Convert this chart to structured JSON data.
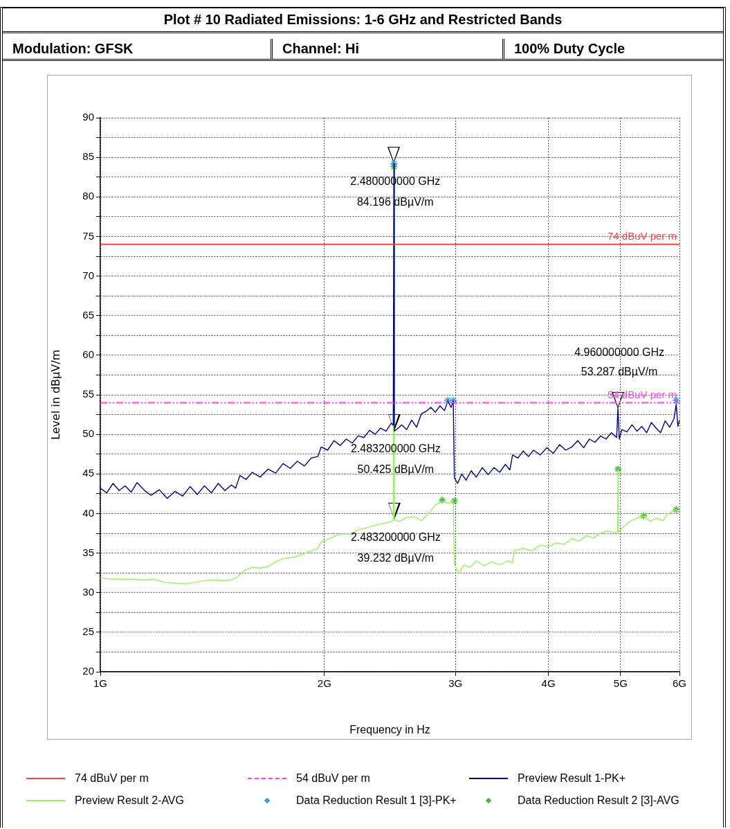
{
  "chart_data": {
    "type": "line",
    "title": "Plot # 10 Radiated Emissions: 1-6 GHz and Restricted Bands",
    "annotations": [
      "Modulation: GFSK",
      "Channel: Hi",
      "100% Duty Cycle",
      {
        "text": "2.480000000 GHz\n84.196 dBµV/m",
        "x": 2.48,
        "y": 84.196
      },
      {
        "text": "2.483200000 GHz\n50.425 dBµV/m",
        "x": 2.4832,
        "y": 50.425
      },
      {
        "text": "2.483200000 GHz\n39.232 dBµV/m",
        "x": 2.4832,
        "y": 39.232
      },
      {
        "text": "4.960000000 GHz\n53.287 dBµV/m",
        "x": 4.96,
        "y": 53.287
      }
    ],
    "xlabel": "Frequency in Hz",
    "ylabel": "Level in dBµV/m",
    "log": "x",
    "grid": true,
    "legend": "bottom",
    "xlim": [
      1,
      6
    ],
    "xticks": [
      {
        "value": 1,
        "label": "1G"
      },
      {
        "value": 2,
        "label": "2G"
      },
      {
        "value": 3,
        "label": "3G"
      },
      {
        "value": 4,
        "label": "4G"
      },
      {
        "value": 5,
        "label": "5G"
      },
      {
        "value": 6,
        "label": "6G"
      }
    ],
    "ylim": [
      20,
      90
    ],
    "yticks": [
      20,
      {
        "value": 22.5,
        "label": null
      },
      25,
      {
        "value": 27.5,
        "label": null
      },
      30,
      {
        "value": 32.5,
        "label": null
      },
      35,
      {
        "value": 37.5,
        "label": null
      },
      40,
      {
        "value": 42.5,
        "label": null
      },
      45,
      {
        "value": 47.5,
        "label": null
      },
      50,
      {
        "value": 52.5,
        "label": null
      },
      55,
      {
        "value": 57.5,
        "label": null
      },
      60,
      {
        "value": 62.5,
        "label": null
      },
      65,
      {
        "value": 67.5,
        "label": null
      },
      70,
      {
        "value": 72.5,
        "label": null
      },
      75,
      {
        "value": 77.5,
        "label": null
      },
      80,
      {
        "value": 82.5,
        "label": null
      },
      85,
      {
        "value": 87.5,
        "label": null
      },
      90
    ],
    "ref_lines": [
      {
        "axis": "y",
        "value": 74,
        "label": "74 dBuV per m",
        "color": "#ff4040",
        "line_style": "solid"
      },
      {
        "axis": "y",
        "value": 54,
        "label": "54 dBuV per m",
        "color": "#ff40ff",
        "line_style": "dashed"
      }
    ],
    "series": [
      {
        "name": "Preview Result 1-PK+",
        "type": "line",
        "color": "#000080",
        "marker": "none",
        "line_style": "solid",
        "x": [
          1.0,
          1.02,
          1.04,
          1.06,
          1.08,
          1.1,
          1.12,
          1.15,
          1.17,
          1.2,
          1.23,
          1.26,
          1.29,
          1.32,
          1.35,
          1.38,
          1.41,
          1.44,
          1.47,
          1.5,
          1.52,
          1.54,
          1.57,
          1.6,
          1.64,
          1.68,
          1.72,
          1.76,
          1.8,
          1.84,
          1.88,
          1.92,
          1.96,
          1.98,
          2.02,
          2.06,
          2.1,
          2.14,
          2.18,
          2.22,
          2.26,
          2.3,
          2.34,
          2.38,
          2.42,
          2.46,
          2.475,
          2.48,
          2.4832,
          2.5,
          2.54,
          2.58,
          2.62,
          2.66,
          2.7,
          2.74,
          2.78,
          2.82,
          2.86,
          2.9,
          2.93,
          2.96,
          2.98,
          2.99,
          3.02,
          3.06,
          3.1,
          3.15,
          3.2,
          3.26,
          3.32,
          3.38,
          3.44,
          3.5,
          3.55,
          3.58,
          3.64,
          3.7,
          3.76,
          3.82,
          3.9,
          3.98,
          4.06,
          4.14,
          4.22,
          4.3,
          4.38,
          4.46,
          4.54,
          4.62,
          4.7,
          4.78,
          4.86,
          4.94,
          4.96,
          4.98,
          5.02,
          5.1,
          5.18,
          5.26,
          5.34,
          5.42,
          5.5,
          5.58,
          5.66,
          5.74,
          5.82,
          5.9,
          5.94,
          5.97,
          6.0
        ],
        "values": [
          43.2,
          42.6,
          43.8,
          42.9,
          43.5,
          42.7,
          43.9,
          42.8,
          42.3,
          43.0,
          41.9,
          42.8,
          42.2,
          43.4,
          42.4,
          43.5,
          42.6,
          43.8,
          42.9,
          43.6,
          43.2,
          44.8,
          44.3,
          45.2,
          44.6,
          45.6,
          45.1,
          46.3,
          45.7,
          46.6,
          46.0,
          47.0,
          47.2,
          48.4,
          48.0,
          49.2,
          48.6,
          49.4,
          48.9,
          49.8,
          49.6,
          50.5,
          50.0,
          50.8,
          50.4,
          51.4,
          51.2,
          84.196,
          50.425,
          50.6,
          51.2,
          50.6,
          51.8,
          50.9,
          52.6,
          52.9,
          53.4,
          52.8,
          53.6,
          53.0,
          54.2,
          53.4,
          54.2,
          44.5,
          43.8,
          45.0,
          44.2,
          45.4,
          44.6,
          45.8,
          44.9,
          45.8,
          45.2,
          46.2,
          45.5,
          47.4,
          47.0,
          47.9,
          47.2,
          48.0,
          47.4,
          48.3,
          47.6,
          48.7,
          48.0,
          48.4,
          49.2,
          48.3,
          49.4,
          49.0,
          49.8,
          49.4,
          50.2,
          49.6,
          53.287,
          49.4,
          50.6,
          50.3,
          51.2,
          50.4,
          51.0,
          50.2,
          51.5,
          50.8,
          50.2,
          51.7,
          50.9,
          52.0,
          53.8,
          51.0,
          51.8
        ]
      },
      {
        "name": "Preview Result 2-AVG",
        "type": "line",
        "color": "#99ee66",
        "marker": "none",
        "line_style": "solid",
        "x": [
          1.0,
          1.05,
          1.1,
          1.15,
          1.18,
          1.22,
          1.26,
          1.3,
          1.34,
          1.38,
          1.42,
          1.46,
          1.5,
          1.53,
          1.56,
          1.6,
          1.64,
          1.68,
          1.72,
          1.76,
          1.8,
          1.85,
          1.9,
          1.96,
          1.98,
          2.04,
          2.1,
          2.16,
          2.22,
          2.3,
          2.36,
          2.42,
          2.475,
          2.48,
          2.4832,
          2.52,
          2.58,
          2.64,
          2.7,
          2.76,
          2.82,
          2.88,
          2.94,
          2.98,
          2.99,
          3.03,
          3.08,
          3.14,
          3.2,
          3.28,
          3.36,
          3.44,
          3.52,
          3.58,
          3.6,
          3.7,
          3.8,
          3.9,
          4.0,
          4.1,
          4.2,
          4.3,
          4.4,
          4.5,
          4.6,
          4.7,
          4.8,
          4.9,
          4.955,
          4.96,
          4.965,
          5.05,
          5.15,
          5.25,
          5.37,
          5.48,
          5.58,
          5.7,
          5.8,
          5.94,
          6.0
        ],
        "values": [
          31.8,
          31.7,
          31.7,
          31.6,
          31.7,
          31.3,
          31.2,
          31.1,
          31.3,
          31.5,
          31.6,
          31.5,
          31.6,
          32.0,
          32.8,
          33.2,
          33.1,
          33.3,
          33.9,
          34.3,
          34.4,
          34.7,
          35.1,
          35.6,
          36.4,
          36.9,
          37.4,
          37.4,
          37.9,
          38.3,
          38.6,
          38.8,
          39.1,
          83.8,
          39.232,
          39.0,
          39.5,
          39.6,
          39.1,
          40.0,
          41.1,
          41.5,
          41.3,
          41.6,
          33.6,
          32.4,
          33.5,
          33.2,
          34.0,
          33.4,
          33.9,
          33.5,
          34.0,
          33.8,
          35.3,
          35.6,
          35.3,
          36.0,
          35.8,
          36.3,
          36.1,
          36.8,
          36.5,
          37.2,
          36.9,
          37.5,
          37.8,
          37.6,
          37.7,
          45.6,
          37.6,
          38.4,
          39.0,
          39.4,
          39.7,
          39.0,
          39.4,
          39.1,
          40.0,
          40.5,
          40.0
        ]
      },
      {
        "name": "Data Reduction Result 1 [3]-PK+",
        "type": "scatter",
        "color": "#3399ee",
        "marker": "cross",
        "x": [
          2.48,
          2.93,
          2.98,
          5.94
        ],
        "values": [
          84.2,
          54.3,
          54.3,
          54.3
        ]
      },
      {
        "name": "Data Reduction Result 2 [3]-AVG",
        "type": "scatter",
        "color": "#44bb33",
        "marker": "cross",
        "x": [
          2.48,
          2.88,
          2.99,
          4.96,
          5.37,
          5.94
        ],
        "values": [
          83.8,
          41.7,
          41.6,
          45.6,
          39.7,
          40.5
        ]
      }
    ]
  }
}
